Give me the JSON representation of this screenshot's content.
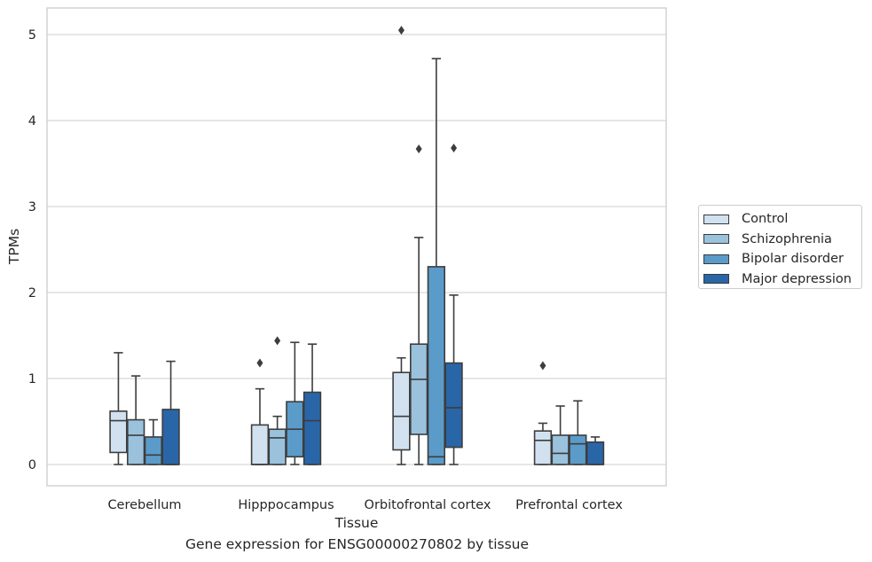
{
  "caption": "Gene expression for ENSG00000270802 by tissue",
  "chart_data": {
    "type": "box",
    "xlabel": "Tissue",
    "ylabel": "TPMs",
    "ylim": [
      -0.25,
      5.3
    ],
    "yticks": [
      0,
      1,
      2,
      3,
      4,
      5
    ],
    "grid": "horizontal",
    "legend_position": "right",
    "categories": [
      "Cerebellum",
      "Hipppocampus",
      "Orbitofrontal cortex",
      "Prefrontal cortex"
    ],
    "series": [
      {
        "name": "Control",
        "color": "#d1e1f0",
        "boxes": [
          {
            "whisker_low": 0,
            "q1": 0.14,
            "median": 0.51,
            "q3": 0.62,
            "whisker_high": 1.3,
            "outliers": []
          },
          {
            "whisker_low": 0,
            "q1": 0,
            "median": 0,
            "q3": 0.46,
            "whisker_high": 0.88,
            "outliers": [
              1.18
            ]
          },
          {
            "whisker_low": 0,
            "q1": 0.17,
            "median": 0.56,
            "q3": 1.07,
            "whisker_high": 1.24,
            "outliers": [
              5.05
            ]
          },
          {
            "whisker_low": 0,
            "q1": 0,
            "median": 0.28,
            "q3": 0.39,
            "whisker_high": 0.48,
            "outliers": [
              1.15
            ]
          }
        ]
      },
      {
        "name": "Schizophrenia",
        "color": "#9ac2dd",
        "boxes": [
          {
            "whisker_low": 0,
            "q1": 0,
            "median": 0.34,
            "q3": 0.52,
            "whisker_high": 1.03,
            "outliers": []
          },
          {
            "whisker_low": 0,
            "q1": 0,
            "median": 0.31,
            "q3": 0.41,
            "whisker_high": 0.56,
            "outliers": [
              1.44
            ]
          },
          {
            "whisker_low": 0,
            "q1": 0.35,
            "median": 0.99,
            "q3": 1.4,
            "whisker_high": 2.64,
            "outliers": [
              3.67
            ]
          },
          {
            "whisker_low": 0,
            "q1": 0,
            "median": 0.13,
            "q3": 0.34,
            "whisker_high": 0.68,
            "outliers": []
          }
        ]
      },
      {
        "name": "Bipolar disorder",
        "color": "#5b9bc9",
        "boxes": [
          {
            "whisker_low": 0,
            "q1": 0,
            "median": 0.11,
            "q3": 0.32,
            "whisker_high": 0.52,
            "outliers": []
          },
          {
            "whisker_low": 0,
            "q1": 0.09,
            "median": 0.41,
            "q3": 0.73,
            "whisker_high": 1.42,
            "outliers": []
          },
          {
            "whisker_low": 0,
            "q1": 0,
            "median": 0.09,
            "q3": 2.3,
            "whisker_high": 4.72,
            "outliers": []
          },
          {
            "whisker_low": 0,
            "q1": 0,
            "median": 0.24,
            "q3": 0.34,
            "whisker_high": 0.74,
            "outliers": []
          }
        ]
      },
      {
        "name": "Major depression",
        "color": "#2966a8",
        "boxes": [
          {
            "whisker_low": 0,
            "q1": 0,
            "median": 0,
            "q3": 0.64,
            "whisker_high": 1.2,
            "outliers": []
          },
          {
            "whisker_low": 0,
            "q1": 0,
            "median": 0.51,
            "q3": 0.84,
            "whisker_high": 1.4,
            "outliers": []
          },
          {
            "whisker_low": 0,
            "q1": 0.2,
            "median": 0.66,
            "q3": 1.18,
            "whisker_high": 1.97,
            "outliers": [
              3.68
            ]
          },
          {
            "whisker_low": 0,
            "q1": 0,
            "median": 0,
            "q3": 0.26,
            "whisker_high": 0.32,
            "outliers": []
          }
        ]
      }
    ]
  }
}
